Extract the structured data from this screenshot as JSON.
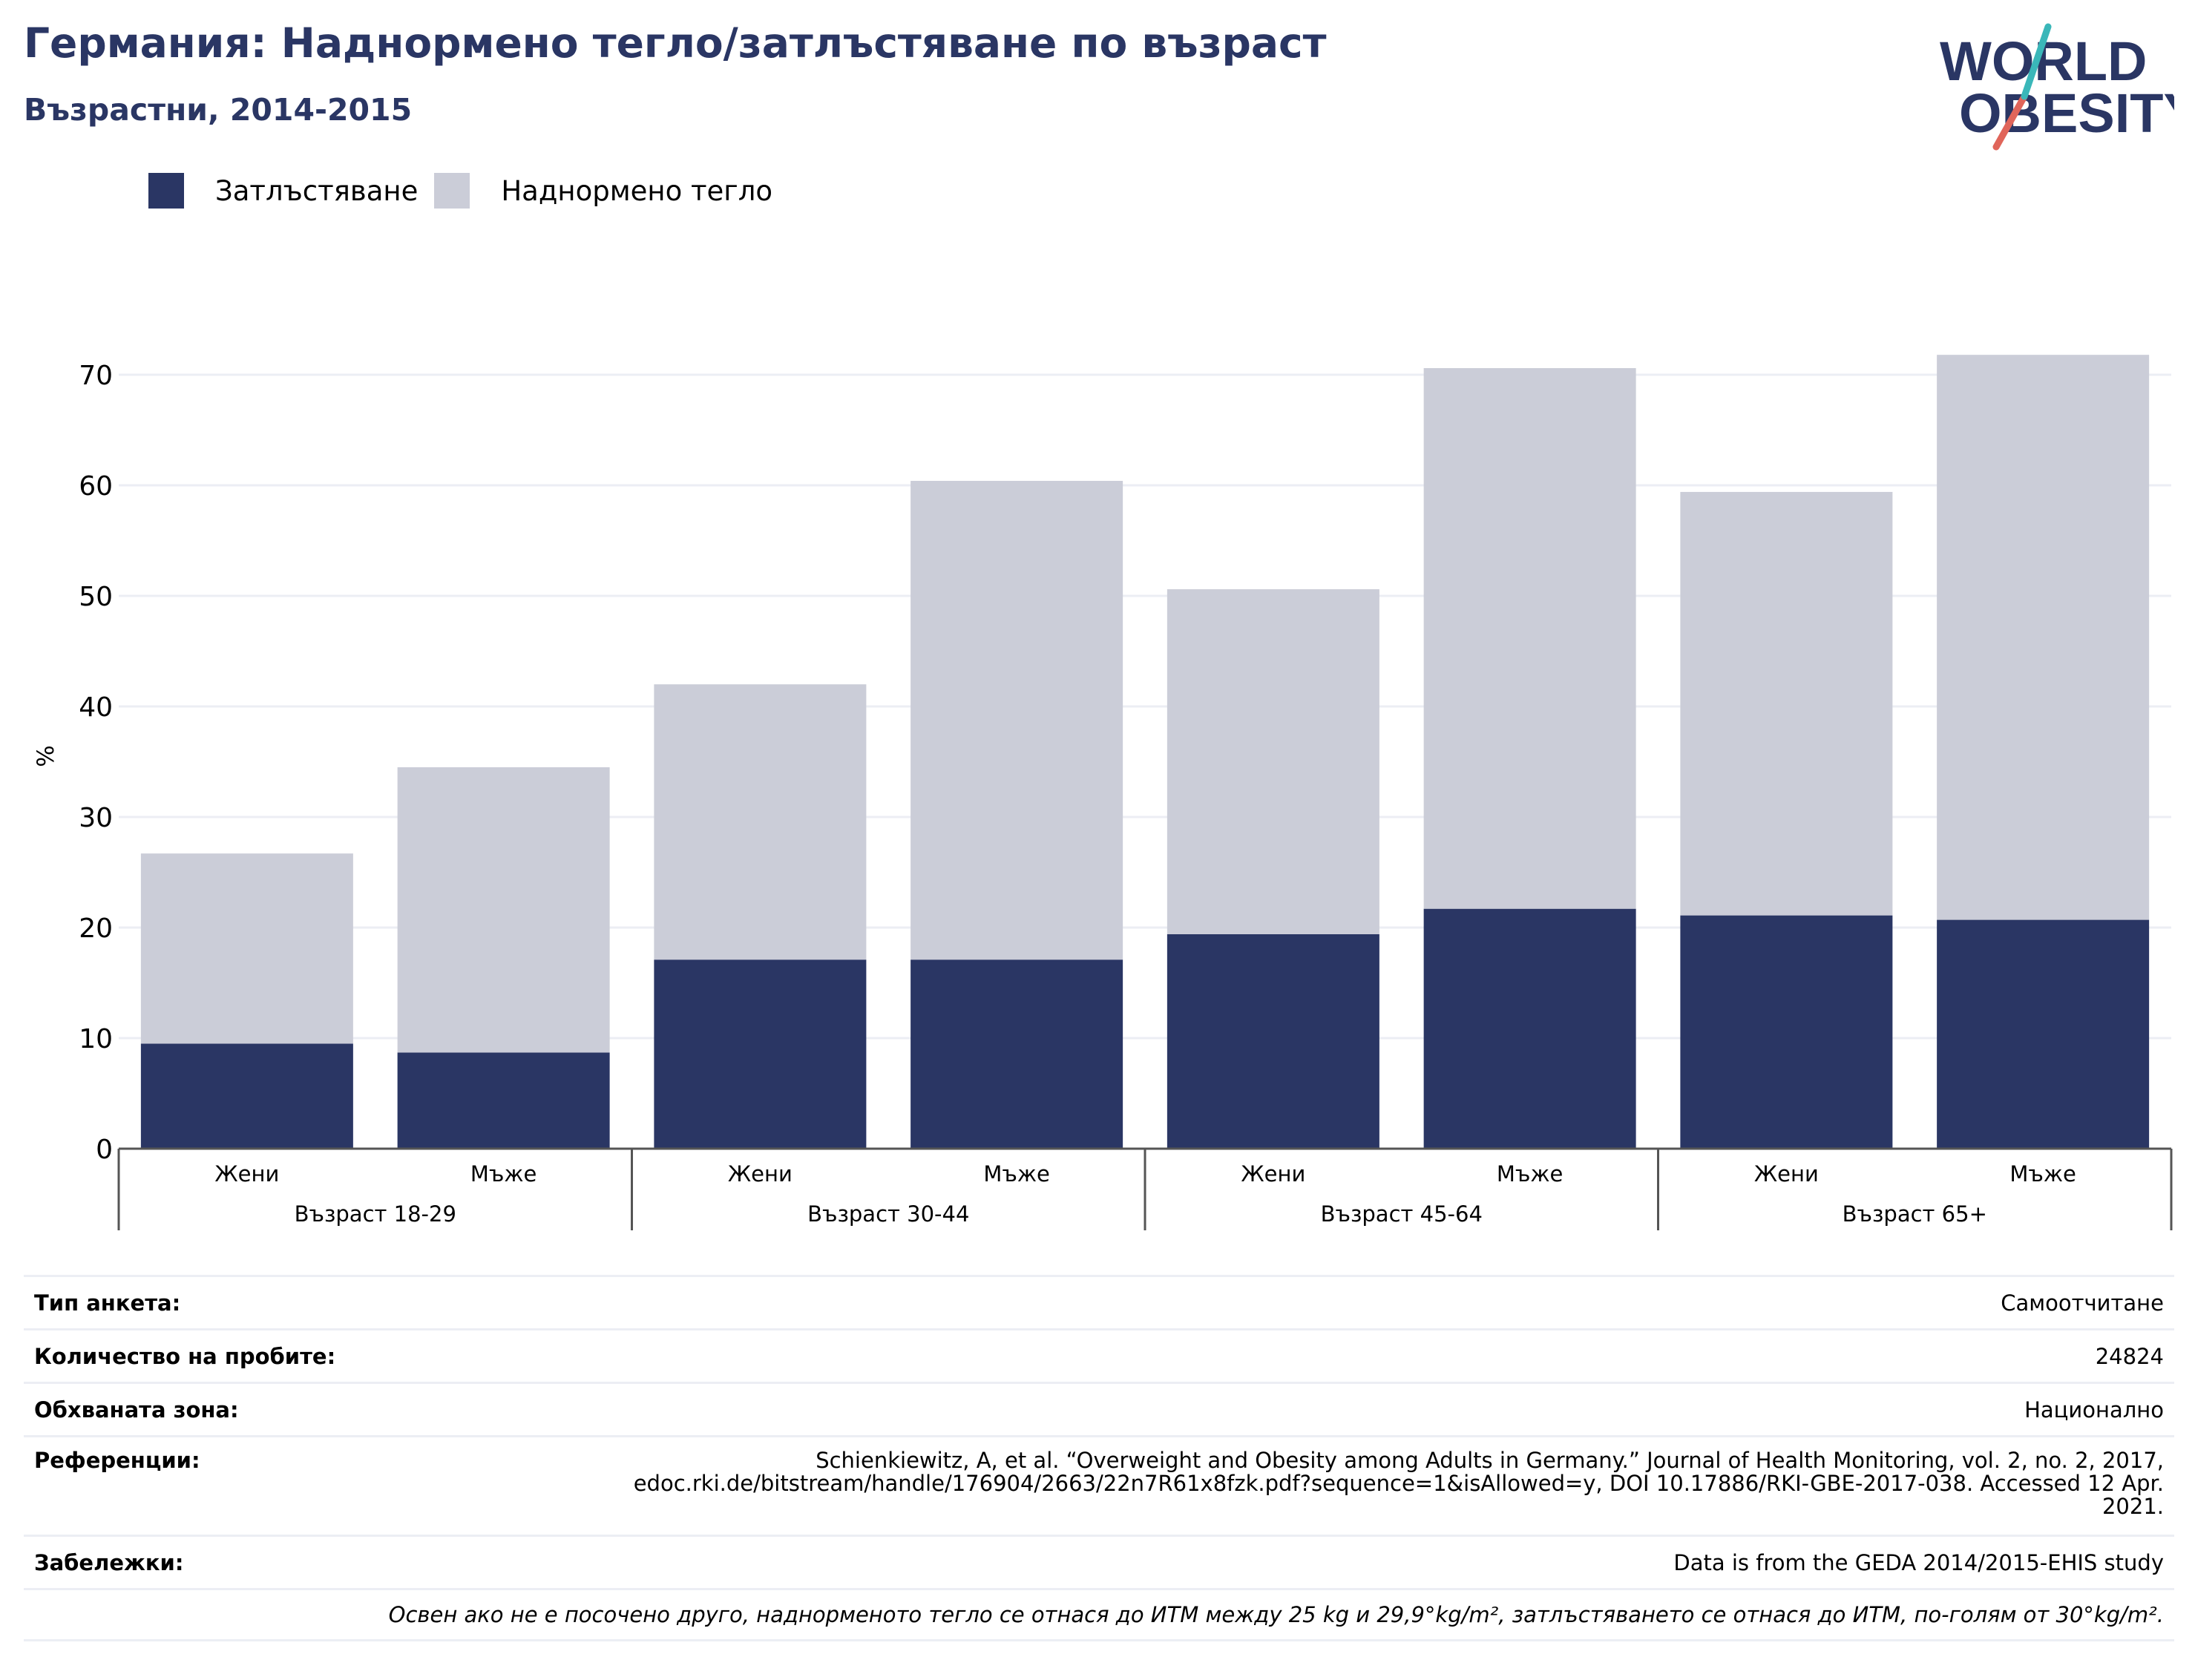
{
  "title": "Германия: Наднормено тегло/затлъстяване по възраст",
  "subtitle": "Възрастни, 2014-2015",
  "logo": {
    "line1": "WORLD",
    "line2": "OBESITY"
  },
  "colors": {
    "obesity": "#2a3664",
    "overweight": "#cbcdd8",
    "title": "#2a3664",
    "grid": "#eceef4",
    "logo_teal": "#3ab7b9",
    "logo_coral": "#e0655a"
  },
  "legend": [
    {
      "label": "Затлъстяване",
      "color": "#2a3664"
    },
    {
      "label": "Наднормено тегло",
      "color": "#cbcdd8"
    }
  ],
  "chart_data": {
    "type": "bar",
    "stacked": true,
    "ylabel": "%",
    "ylim": [
      0,
      73
    ],
    "yticks": [
      0,
      10,
      20,
      30,
      40,
      50,
      60,
      70
    ],
    "grid": true,
    "legend_position": "top-left",
    "groups": [
      "Възраст 18-29",
      "Възраст 30-44",
      "Възраст 45-64",
      "Възраст 65+"
    ],
    "categories": [
      "Жени",
      "Мъже",
      "Жени",
      "Мъже",
      "Жени",
      "Мъже",
      "Жени",
      "Мъже"
    ],
    "series": [
      {
        "name": "Затлъстяване",
        "values": [
          9.5,
          8.7,
          17.1,
          17.1,
          19.4,
          21.7,
          21.1,
          20.7
        ]
      },
      {
        "name": "Наднормено тегло",
        "values": [
          17.2,
          25.8,
          24.9,
          43.3,
          31.2,
          48.9,
          38.3,
          51.1
        ]
      }
    ]
  },
  "table": [
    {
      "label": "Тип анкета:",
      "value": "Самоотчитане"
    },
    {
      "label": "Количество на пробите:",
      "value": "24824"
    },
    {
      "label": "Обхваната зона:",
      "value": "Национално"
    },
    {
      "label": "Референции:",
      "value_lines": [
        "Schienkiewitz, A, et al. “Overweight and Obesity among Adults in Germany.” Journal of Health Monitoring, vol. 2, no. 2, 2017,",
        "edoc.rki.de/bitstream/handle/176904/2663/22n7R61x8fzk.pdf?sequence=1&isAllowed=y, DOI 10.17886/RKI-GBE-2017-038. Accessed 12 Apr.",
        "2021."
      ]
    },
    {
      "label": "Забележки:",
      "value": "Data is from the GEDA 2014/2015-EHIS study"
    }
  ],
  "footnote": "Освен ако не е посочено друго, наднорменото тегло се отнася до ИТМ между 25 kg и 29,9°kg/m², затлъстяването се отнася до ИТМ, по-голям от 30°kg/m²."
}
